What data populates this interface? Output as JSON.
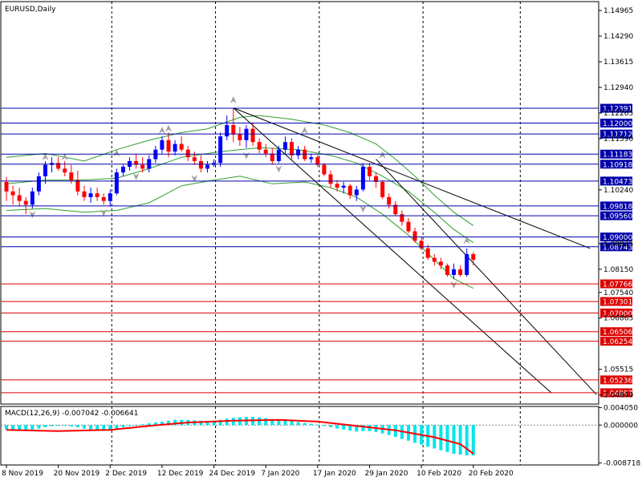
{
  "chart_data": {
    "type": "candlestick",
    "symbol_label": "EURUSD,Daily",
    "colors": {
      "background": "#ffffff",
      "frame": "#000000",
      "bull": "#0000ff",
      "bear": "#ff0000",
      "resistance": "#0000aa",
      "support": "#dd0000",
      "bollinger": "#2e9e2e",
      "trendline": "#000000",
      "fractal": "#a0a0a0",
      "macd_hist": "#00e5ee",
      "macd_signal": "#ff0000",
      "grid": "#000000",
      "label_text_light": "#ffffff"
    },
    "price_axis": {
      "ylim": [
        1.046,
        1.152
      ],
      "ticks": [
        "1.14965",
        "1.14290",
        "1.13615",
        "1.12940",
        "1.12265",
        "1.11590",
        "1.10240",
        "1.08825",
        "1.08150",
        "1.07540",
        "1.06865",
        "1.05515",
        "1.04840"
      ]
    },
    "date_axis_labels": [
      "8 Nov 2019",
      "20 Nov 2019",
      "2 Dec 2019",
      "12 Dec 2019",
      "24 Dec 2019",
      "7 Jan 2020",
      "17 Jan 2020",
      "29 Jan 2020",
      "10 Feb 2020",
      "20 Feb 2020"
    ],
    "resistance_levels": [
      "1.12391",
      "1.12000",
      "1.11712",
      "1.11183",
      "1.10918",
      "1.10473",
      "1.09818",
      "1.09560",
      "1.09000",
      "1.08743"
    ],
    "support_levels": [
      "1.07766",
      "1.07301",
      "1.07000",
      "1.06506",
      "1.06254",
      "1.05236",
      "1.04897"
    ],
    "candles": [
      [
        1.1045,
        1.1058,
        1.0995,
        1.102
      ],
      [
        1.102,
        1.1035,
        1.0985,
        1.101
      ],
      [
        1.101,
        1.103,
        1.098,
        1.0995
      ],
      [
        1.0995,
        1.1005,
        1.096,
        1.0985
      ],
      [
        1.0985,
        1.103,
        1.0975,
        1.102
      ],
      [
        1.102,
        1.107,
        1.101,
        1.106
      ],
      [
        1.106,
        1.11,
        1.104,
        1.109
      ],
      [
        1.109,
        1.111,
        1.107,
        1.1095
      ],
      [
        1.1095,
        1.111,
        1.1075,
        1.108
      ],
      [
        1.108,
        1.11,
        1.106,
        1.107
      ],
      [
        1.107,
        1.109,
        1.104,
        1.105
      ],
      [
        1.105,
        1.1075,
        1.101,
        1.102
      ],
      [
        1.102,
        1.1035,
        1.0995,
        1.1005
      ],
      [
        1.1005,
        1.103,
        1.099,
        1.1015
      ],
      [
        1.1015,
        1.103,
        1.0995,
        1.1005
      ],
      [
        1.1005,
        1.1015,
        1.0985,
        1.0995
      ],
      [
        1.0995,
        1.1025,
        1.098,
        1.1015
      ],
      [
        1.1015,
        1.108,
        1.101,
        1.107
      ],
      [
        1.107,
        1.109,
        1.106,
        1.1085
      ],
      [
        1.1085,
        1.111,
        1.1075,
        1.11
      ],
      [
        1.11,
        1.112,
        1.108,
        1.109
      ],
      [
        1.109,
        1.111,
        1.107,
        1.108
      ],
      [
        1.108,
        1.1115,
        1.107,
        1.1105
      ],
      [
        1.1105,
        1.114,
        1.1095,
        1.113
      ],
      [
        1.113,
        1.1165,
        1.112,
        1.1155
      ],
      [
        1.1155,
        1.1175,
        1.111,
        1.1125
      ],
      [
        1.1125,
        1.1155,
        1.1115,
        1.1145
      ],
      [
        1.1145,
        1.1165,
        1.1125,
        1.113
      ],
      [
        1.113,
        1.114,
        1.11,
        1.111
      ],
      [
        1.111,
        1.1125,
        1.109,
        1.11
      ],
      [
        1.11,
        1.1115,
        1.107,
        1.108
      ],
      [
        1.108,
        1.11,
        1.107,
        1.109
      ],
      [
        1.109,
        1.1105,
        1.1085,
        1.1095
      ],
      [
        1.1095,
        1.1175,
        1.1085,
        1.1165
      ],
      [
        1.1165,
        1.122,
        1.1155,
        1.1195
      ],
      [
        1.1195,
        1.124,
        1.115,
        1.117
      ],
      [
        1.117,
        1.119,
        1.114,
        1.1155
      ],
      [
        1.1155,
        1.1195,
        1.1135,
        1.1185
      ],
      [
        1.1185,
        1.12,
        1.114,
        1.115
      ],
      [
        1.115,
        1.116,
        1.112,
        1.113
      ],
      [
        1.113,
        1.1145,
        1.111,
        1.112
      ],
      [
        1.112,
        1.1135,
        1.109,
        1.11
      ],
      [
        1.11,
        1.114,
        1.1095,
        1.113
      ],
      [
        1.113,
        1.1165,
        1.112,
        1.115
      ],
      [
        1.115,
        1.116,
        1.1105,
        1.1115
      ],
      [
        1.1115,
        1.114,
        1.1105,
        1.113
      ],
      [
        1.113,
        1.114,
        1.11,
        1.1105
      ],
      [
        1.1105,
        1.112,
        1.1095,
        1.111
      ],
      [
        1.111,
        1.1115,
        1.1085,
        1.109
      ],
      [
        1.109,
        1.1095,
        1.106,
        1.1065
      ],
      [
        1.1065,
        1.1075,
        1.103,
        1.104
      ],
      [
        1.104,
        1.105,
        1.102,
        1.103
      ],
      [
        1.103,
        1.1045,
        1.1015,
        1.1035
      ],
      [
        1.1035,
        1.104,
        1.1,
        1.101
      ],
      [
        1.101,
        1.1035,
        1.0995,
        1.1025
      ],
      [
        1.1025,
        1.1095,
        1.102,
        1.1085
      ],
      [
        1.1085,
        1.1095,
        1.105,
        1.106
      ],
      [
        1.106,
        1.107,
        1.103,
        1.1045
      ],
      [
        1.1045,
        1.105,
        1.1,
        1.1005
      ],
      [
        1.1005,
        1.1015,
        1.0975,
        1.0985
      ],
      [
        1.0985,
        1.0995,
        1.0955,
        1.096
      ],
      [
        1.096,
        1.097,
        1.093,
        1.094
      ],
      [
        1.094,
        1.095,
        1.091,
        1.0915
      ],
      [
        1.0915,
        1.0925,
        1.0885,
        1.089
      ],
      [
        1.089,
        1.09,
        1.0865,
        1.087
      ],
      [
        1.087,
        1.088,
        1.084,
        1.0845
      ],
      [
        1.0845,
        1.0855,
        1.0825,
        1.0835
      ],
      [
        1.0835,
        1.0845,
        1.0815,
        1.0825
      ],
      [
        1.0825,
        1.083,
        1.0795,
        1.08
      ],
      [
        1.08,
        1.083,
        1.079,
        1.0815
      ],
      [
        1.0815,
        1.0825,
        1.0795,
        1.08
      ],
      [
        1.08,
        1.087,
        1.0795,
        1.0855
      ],
      [
        1.0855,
        1.086,
        1.0825,
        1.084
      ]
    ],
    "bollinger": {
      "upper": [
        [
          0,
          1.111
        ],
        [
          6,
          1.112
        ],
        [
          12,
          1.11
        ],
        [
          17,
          1.113
        ],
        [
          22,
          1.1155
        ],
        [
          27,
          1.1175
        ],
        [
          31,
          1.1185
        ],
        [
          36,
          1.1215
        ],
        [
          39,
          1.122
        ],
        [
          44,
          1.121
        ],
        [
          49,
          1.1195
        ],
        [
          53,
          1.1175
        ],
        [
          57,
          1.1145
        ],
        [
          60,
          1.1105
        ],
        [
          63,
          1.106
        ],
        [
          66,
          1.101
        ],
        [
          69,
          1.0965
        ],
        [
          72,
          1.093
        ]
      ],
      "middle": [
        [
          0,
          1.104
        ],
        [
          6,
          1.105
        ],
        [
          12,
          1.105
        ],
        [
          17,
          1.1055
        ],
        [
          22,
          1.108
        ],
        [
          27,
          1.111
        ],
        [
          33,
          1.1125
        ],
        [
          39,
          1.1135
        ],
        [
          45,
          1.113
        ],
        [
          50,
          1.1115
        ],
        [
          54,
          1.1095
        ],
        [
          58,
          1.106
        ],
        [
          62,
          1.102
        ],
        [
          66,
          1.0965
        ],
        [
          69,
          1.092
        ],
        [
          72,
          1.0885
        ]
      ],
      "lower": [
        [
          0,
          1.097
        ],
        [
          6,
          1.0975
        ],
        [
          12,
          1.0965
        ],
        [
          17,
          1.097
        ],
        [
          22,
          1.099
        ],
        [
          27,
          1.1035
        ],
        [
          32,
          1.105
        ],
        [
          36,
          1.106
        ],
        [
          41,
          1.104
        ],
        [
          46,
          1.1045
        ],
        [
          50,
          1.103
        ],
        [
          54,
          1.1005
        ],
        [
          58,
          1.096
        ],
        [
          62,
          1.0905
        ],
        [
          66,
          1.084
        ],
        [
          69,
          1.079
        ],
        [
          72,
          1.0765
        ]
      ]
    },
    "trendlines": [
      [
        [
          35,
          1.124
        ],
        [
          90,
          1.087
        ]
      ],
      [
        [
          35,
          1.124
        ],
        [
          84,
          1.049
        ]
      ],
      [
        [
          57,
          1.1105
        ],
        [
          91,
          1.0485
        ]
      ]
    ],
    "fractals_up": [
      [
        6,
        1.111
      ],
      [
        9,
        1.111
      ],
      [
        17,
        1.112
      ],
      [
        24,
        1.118
      ],
      [
        25,
        1.1185
      ],
      [
        35,
        1.126
      ],
      [
        46,
        1.118
      ],
      [
        58,
        1.1115
      ],
      [
        71,
        1.089
      ]
    ],
    "fractals_down": [
      [
        4,
        1.096
      ],
      [
        15,
        1.0965
      ],
      [
        20,
        1.106
      ],
      [
        29,
        1.1055
      ],
      [
        37,
        1.1115
      ],
      [
        42,
        1.108
      ],
      [
        55,
        1.0975
      ],
      [
        69,
        1.0775
      ]
    ],
    "macd": {
      "label": "MACD(12,26,9) -0.007042 -0.006641",
      "ylim": [
        -0.0092,
        0.0043
      ],
      "ticks": [
        "0.004050",
        "0.000000",
        "-0.008718"
      ],
      "hist": [
        -0.001,
        -0.0011,
        -0.0012,
        -0.0012,
        -0.0011,
        -0.0008,
        -0.0005,
        -0.0003,
        -0.0002,
        -0.0002,
        -0.0003,
        -0.0005,
        -0.0008,
        -0.001,
        -0.0011,
        -0.0012,
        -0.0012,
        -0.0009,
        -0.0005,
        -0.0002,
        0.0,
        0.0002,
        0.0004,
        0.0006,
        0.0008,
        0.001,
        0.0012,
        0.0012,
        0.0012,
        0.0011,
        0.001,
        0.0009,
        0.001,
        0.0012,
        0.0015,
        0.0017,
        0.0018,
        0.0019,
        0.0019,
        0.0018,
        0.0016,
        0.0014,
        0.0012,
        0.0011,
        0.0009,
        0.0007,
        0.0005,
        0.0003,
        0.0001,
        -0.0002,
        -0.0005,
        -0.0008,
        -0.001,
        -0.0013,
        -0.0015,
        -0.0014,
        -0.0014,
        -0.0016,
        -0.0019,
        -0.0023,
        -0.0027,
        -0.0032,
        -0.0036,
        -0.0041,
        -0.0045,
        -0.005,
        -0.0054,
        -0.0058,
        -0.0062,
        -0.0066,
        -0.0068,
        -0.007,
        -0.007
      ],
      "signal": [
        [
          0,
          -0.0011
        ],
        [
          8,
          -0.0014
        ],
        [
          16,
          -0.0011
        ],
        [
          22,
          -0.0002
        ],
        [
          28,
          0.0006
        ],
        [
          35,
          0.001
        ],
        [
          42,
          0.0012
        ],
        [
          48,
          0.0008
        ],
        [
          54,
          -0.0002
        ],
        [
          60,
          -0.0012
        ],
        [
          66,
          -0.0028
        ],
        [
          70,
          -0.0044
        ],
        [
          72,
          -0.0066
        ]
      ]
    }
  }
}
